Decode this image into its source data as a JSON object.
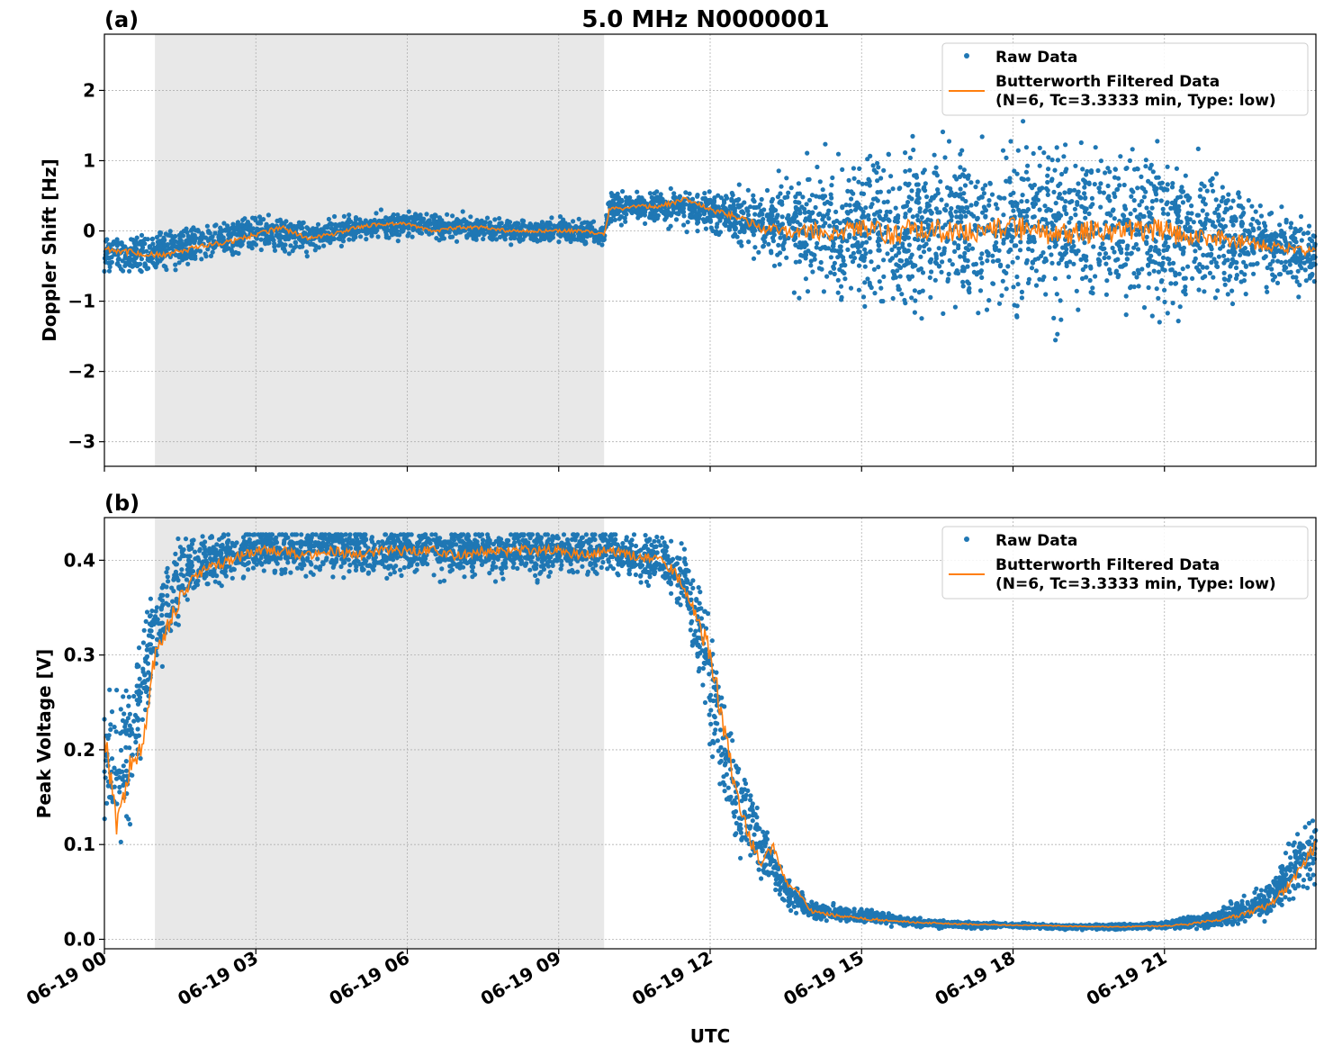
{
  "figure": {
    "title": "5.0 MHz N0000001",
    "xlabel": "UTC"
  },
  "colors": {
    "raw": "#1f77b4",
    "filtered": "#ff7f0e",
    "night_shade": "#e8e8e8",
    "grid": "#b0b0b0"
  },
  "chart_data": [
    {
      "type": "scatter",
      "panel_label": "(a)",
      "ylabel": "Doppler Shift [Hz]",
      "xlim": [
        "06-19 00:00",
        "06-20 00:00"
      ],
      "ylim": [
        -3.35,
        2.8
      ],
      "yticks": [
        2,
        1,
        0,
        -1,
        -2,
        -3
      ],
      "ytick_labels": [
        "2",
        "1",
        "0",
        "−1",
        "−2",
        "−3"
      ],
      "shaded_interval": [
        "06-19 01:00",
        "06-19 09:54"
      ],
      "grid": true,
      "legend": {
        "placement": "upper right",
        "entries": [
          "Raw Data",
          "Butterworth Filtered Data",
          "(N=6, Tc=3.3333 min, Type: low)"
        ]
      },
      "series": [
        {
          "name": "Raw Data",
          "kind": "points",
          "envelope_hours": [
            0,
            1,
            2,
            3,
            4,
            5,
            6,
            7,
            8,
            9,
            9.9,
            10,
            11,
            12,
            13,
            14,
            15,
            16,
            17,
            18,
            19,
            20,
            21,
            22,
            23,
            24
          ],
          "envelope_center": [
            -0.3,
            -0.3,
            -0.15,
            0.0,
            -0.1,
            0.05,
            0.1,
            0.05,
            0.0,
            0.0,
            -0.05,
            0.35,
            0.35,
            0.3,
            0.1,
            0.0,
            0.0,
            0.0,
            0.0,
            0.05,
            0.0,
            0.0,
            0.0,
            -0.1,
            -0.2,
            -0.35
          ],
          "envelope_spread": [
            0.35,
            0.35,
            0.3,
            0.3,
            0.25,
            0.2,
            0.2,
            0.2,
            0.2,
            0.2,
            0.2,
            0.25,
            0.25,
            0.3,
            0.55,
            1.0,
            1.2,
            1.4,
            1.4,
            1.4,
            1.4,
            1.4,
            1.3,
            1.0,
            0.7,
            0.5
          ]
        },
        {
          "name": "Butterworth Filtered Data (N=6, Tc=3.3333 min, Type: low)",
          "kind": "line",
          "x_hours": [
            0,
            0.5,
            1,
            1.5,
            2,
            2.5,
            3,
            3.5,
            4,
            4.5,
            5,
            5.5,
            6,
            6.5,
            7,
            7.5,
            8,
            8.5,
            9,
            9.5,
            9.9,
            10,
            10.5,
            11,
            11.5,
            12,
            12.5,
            13,
            13.5,
            14,
            14.5,
            15,
            15.5,
            16,
            16.5,
            17,
            17.5,
            18,
            18.5,
            19,
            19.5,
            20,
            20.5,
            21,
            21.5,
            22,
            22.5,
            23,
            23.5,
            24
          ],
          "y": [
            -0.25,
            -0.3,
            -0.35,
            -0.3,
            -0.2,
            -0.15,
            -0.05,
            0.05,
            -0.1,
            -0.05,
            0.05,
            0.1,
            0.1,
            0.0,
            0.05,
            0.05,
            0.0,
            0.0,
            0.0,
            0.0,
            -0.05,
            0.3,
            0.35,
            0.35,
            0.45,
            0.3,
            0.2,
            0.05,
            0.0,
            0.0,
            -0.05,
            0.05,
            -0.05,
            0.0,
            0.0,
            -0.05,
            0.05,
            0.05,
            0.0,
            -0.05,
            0.0,
            0.0,
            0.0,
            0.0,
            -0.1,
            -0.1,
            -0.15,
            -0.2,
            -0.25,
            -0.3
          ]
        }
      ]
    },
    {
      "type": "scatter",
      "panel_label": "(b)",
      "ylabel": "Peak Voltage [V]",
      "xlim": [
        "06-19 00:00",
        "06-20 00:00"
      ],
      "ylim": [
        -0.01,
        0.445
      ],
      "yticks": [
        0.4,
        0.3,
        0.2,
        0.1,
        0.0
      ],
      "ytick_labels": [
        "0.4",
        "0.3",
        "0.2",
        "0.1",
        "0.0"
      ],
      "xtick_labels": [
        "06-19 00",
        "06-19 03",
        "06-19 06",
        "06-19 09",
        "06-19 12",
        "06-19 15",
        "06-19 18",
        "06-19 21"
      ],
      "xtick_hours": [
        0,
        3,
        6,
        9,
        12,
        15,
        18,
        21
      ],
      "shaded_interval": [
        "06-19 01:00",
        "06-19 09:54"
      ],
      "grid": true,
      "legend": {
        "placement": "upper right",
        "entries": [
          "Raw Data",
          "Butterworth Filtered Data",
          "(N=6, Tc=3.3333 min, Type: low)"
        ]
      },
      "series": [
        {
          "name": "Raw Data",
          "kind": "points",
          "envelope_hours": [
            0,
            0.5,
            1,
            1.5,
            2,
            3,
            4,
            5,
            6,
            7,
            8,
            9,
            10,
            11,
            11.5,
            12,
            12.5,
            13,
            13.5,
            14,
            15,
            16,
            17,
            18,
            19,
            20,
            21,
            22,
            23,
            23.5,
            24
          ],
          "envelope_center": [
            0.18,
            0.2,
            0.33,
            0.38,
            0.4,
            0.41,
            0.41,
            0.41,
            0.41,
            0.41,
            0.41,
            0.41,
            0.41,
            0.4,
            0.38,
            0.27,
            0.15,
            0.1,
            0.05,
            0.03,
            0.025,
            0.018,
            0.015,
            0.015,
            0.013,
            0.013,
            0.015,
            0.02,
            0.04,
            0.07,
            0.1
          ],
          "envelope_spread": [
            0.08,
            0.09,
            0.06,
            0.05,
            0.03,
            0.03,
            0.03,
            0.03,
            0.03,
            0.03,
            0.03,
            0.03,
            0.03,
            0.03,
            0.04,
            0.08,
            0.06,
            0.04,
            0.02,
            0.012,
            0.008,
            0.005,
            0.004,
            0.003,
            0.003,
            0.003,
            0.004,
            0.01,
            0.02,
            0.035,
            0.05
          ]
        },
        {
          "name": "Butterworth Filtered Data (N=6, Tc=3.3333 min, Type: low)",
          "kind": "line",
          "x_hours": [
            0,
            0.25,
            0.5,
            0.75,
            1,
            1.25,
            1.5,
            1.75,
            2,
            2.5,
            3,
            3.5,
            4,
            4.5,
            5,
            5.5,
            6,
            6.5,
            7,
            7.5,
            8,
            8.5,
            9,
            9.5,
            10,
            10.5,
            11,
            11.25,
            11.5,
            11.75,
            12,
            12.25,
            12.5,
            12.75,
            13,
            13.25,
            13.5,
            13.75,
            14,
            14.5,
            15,
            15.5,
            16,
            17,
            18,
            19,
            20,
            21,
            21.5,
            22,
            22.5,
            23,
            23.25,
            23.5,
            23.75,
            24
          ],
          "y": [
            0.22,
            0.12,
            0.18,
            0.2,
            0.3,
            0.33,
            0.36,
            0.38,
            0.39,
            0.4,
            0.41,
            0.41,
            0.405,
            0.41,
            0.405,
            0.41,
            0.41,
            0.41,
            0.405,
            0.41,
            0.41,
            0.41,
            0.41,
            0.405,
            0.41,
            0.405,
            0.4,
            0.39,
            0.37,
            0.34,
            0.3,
            0.23,
            0.16,
            0.11,
            0.08,
            0.1,
            0.06,
            0.05,
            0.03,
            0.025,
            0.022,
            0.02,
            0.018,
            0.016,
            0.015,
            0.014,
            0.013,
            0.014,
            0.016,
            0.02,
            0.025,
            0.035,
            0.045,
            0.06,
            0.08,
            0.1
          ]
        }
      ]
    }
  ]
}
